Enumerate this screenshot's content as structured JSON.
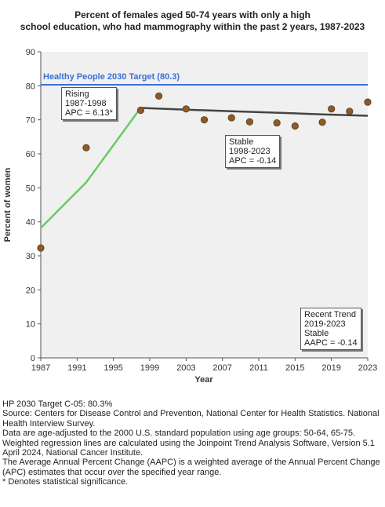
{
  "title_lines": [
    "Percent of females aged 50-74 years with only a high",
    "school education, who had mammography within the past 2 years, 1987-2023"
  ],
  "chart_data": {
    "type": "scatter",
    "title": "Percent of females aged 50-74 years with only a high school education, who had mammography within the past 2 years, 1987-2023",
    "xlabel": "Year",
    "ylabel": "Percent of women",
    "xlim": [
      1987,
      2023
    ],
    "ylim": [
      0,
      90
    ],
    "xticks": [
      1987,
      1991,
      1995,
      1999,
      2003,
      2007,
      2011,
      2015,
      2019,
      2023
    ],
    "yticks": [
      0,
      10,
      20,
      30,
      40,
      50,
      60,
      70,
      80,
      90
    ],
    "grid": false,
    "points": {
      "x": [
        1987,
        1992,
        1998,
        2000,
        2003,
        2005,
        2008,
        2010,
        2013,
        2015,
        2018,
        2019,
        2021,
        2023
      ],
      "y": [
        32.3,
        61.8,
        72.8,
        77.0,
        73.2,
        70.0,
        70.6,
        69.4,
        69.1,
        68.2,
        69.3,
        73.2,
        72.5,
        75.2
      ]
    },
    "target": {
      "label": "Healthy People 2030 Target (80.3)",
      "value": 80.3,
      "color": "#3a6fd8"
    },
    "trend_rising": {
      "x": [
        1987,
        1992,
        1998
      ],
      "y": [
        38.2,
        51.6,
        73.5
      ],
      "color": "#66cc66"
    },
    "trend_stable": {
      "x": [
        1998,
        2003,
        2008,
        2013,
        2018,
        2023
      ],
      "y": [
        73.5,
        73.0,
        72.5,
        72.1,
        71.6,
        71.2
      ],
      "color": "#444444"
    },
    "point_color": "#8b5a2b",
    "annotations": [
      {
        "lines": [
          "Rising",
          "1987-1998",
          "APC =  6.13*"
        ]
      },
      {
        "lines": [
          "Stable",
          "1998-2023",
          "APC = -0.14"
        ]
      },
      {
        "lines": [
          "Recent Trend",
          "2019-2023",
          "Stable",
          "AAPC = -0.14"
        ]
      }
    ]
  },
  "footnotes": [
    "HP 2030 Target C-05: 80.3%",
    "Source: Centers for Disease Control and Prevention, National Center for Health Statistics. National Health Interview Survey.",
    "Data are age-adjusted to the 2000 U.S. standard population using age groups: 50-64, 65-75.",
    "Weighted regression lines are calculated using the Joinpoint Trend Analysis Software, Version 5.1 April 2024, National Cancer Institute.",
    "The Average Annual Percent Change (AAPC) is a weighted average of the Annual Percent Change (APC) estimates that occur over the specified year range.",
    "* Denotes statistical significance."
  ]
}
